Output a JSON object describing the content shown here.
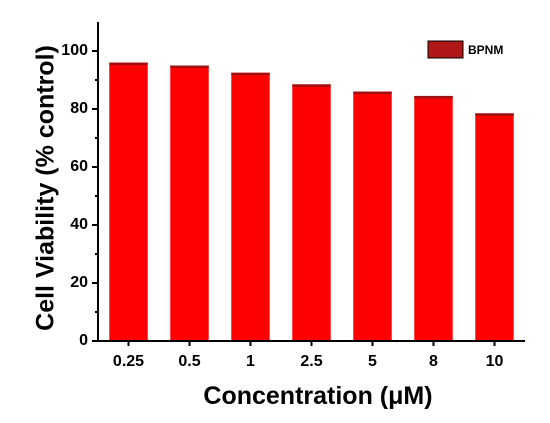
{
  "chart_data": {
    "type": "bar",
    "xlabel": "Concentration (μM)",
    "ylabel": "Cell Viability (% control)",
    "categories": [
      "0.25",
      "0.5",
      "1",
      "2.5",
      "5",
      "8",
      "10"
    ],
    "series": [
      {
        "name": "BPNM",
        "values": [
          96,
          95,
          92.5,
          88.5,
          86,
          84.5,
          78.5
        ]
      }
    ],
    "ylim": [
      0,
      110
    ],
    "yticks": [
      "0",
      "20",
      "40",
      "60",
      "80",
      "100"
    ],
    "colors": {
      "bar_fill": "#ff0000",
      "bar_top": "#a01010",
      "legend_swatch": "#b01818",
      "axis": "#000000"
    },
    "legend": "top-right",
    "grid": false
  }
}
